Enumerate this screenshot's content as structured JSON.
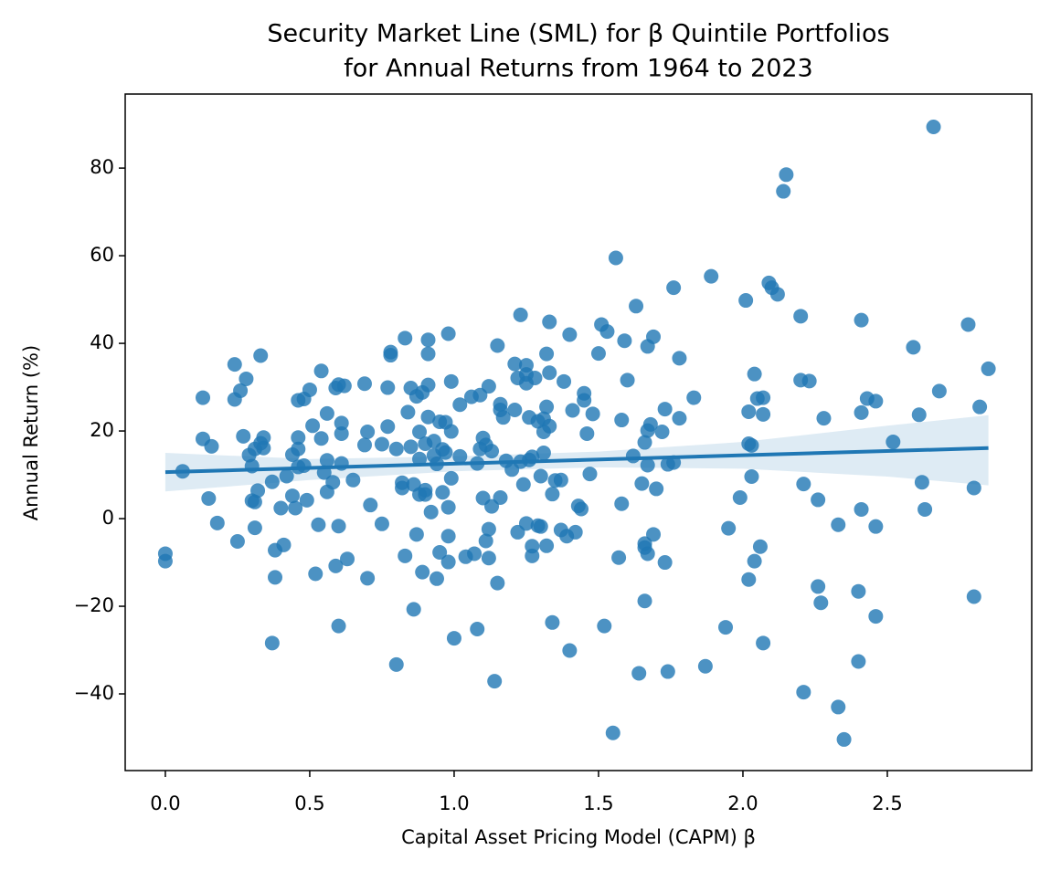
{
  "chart_data": {
    "type": "scatter",
    "title": [
      "Security Market Line (SML) for β Quintile Portfolios",
      "for Annual Returns from 1964 to 2023"
    ],
    "xlabel": "Capital Asset Pricing Model (CAPM) β",
    "ylabel": "Annual Return (%)",
    "color": "#1f77b4",
    "xlim": [
      -0.139,
      3.0
    ],
    "ylim": [
      -57.5,
      96.9
    ],
    "xticks": [
      {
        "value": 0,
        "label": "0.0"
      },
      0.5,
      {
        "value": 1,
        "label": "1.0"
      },
      1.5,
      {
        "value": 2,
        "label": "2.0"
      },
      2.5
    ],
    "yticks": [
      {
        "value": -40,
        "label": "−40"
      },
      {
        "value": -20,
        "label": "−20"
      },
      0,
      20,
      40,
      60,
      80
    ],
    "grid": false,
    "x": [
      0.0,
      0.0,
      0.06,
      0.13,
      0.13,
      0.15,
      0.16,
      0.18,
      0.24,
      0.24,
      0.25,
      0.26,
      0.27,
      0.28,
      0.29,
      0.3,
      0.3,
      0.31,
      0.31,
      0.31,
      0.32,
      0.33,
      0.33,
      0.34,
      0.34,
      0.37,
      0.37,
      0.38,
      0.38,
      0.4,
      0.41,
      0.42,
      0.44,
      0.44,
      0.45,
      0.46,
      0.46,
      0.46,
      0.46,
      0.48,
      0.48,
      0.49,
      0.5,
      0.51,
      0.52,
      0.53,
      0.54,
      0.54,
      0.55,
      0.56,
      0.56,
      0.56,
      0.58,
      0.59,
      0.59,
      0.6,
      0.6,
      0.6,
      0.61,
      0.61,
      0.61,
      0.62,
      0.63,
      0.65,
      0.69,
      0.69,
      0.7,
      0.7,
      0.71,
      0.75,
      0.75,
      0.77,
      0.77,
      0.78,
      0.78,
      0.8,
      0.8,
      0.82,
      0.82,
      0.83,
      0.83,
      0.84,
      0.85,
      0.85,
      0.86,
      0.86,
      0.87,
      0.87,
      0.88,
      0.88,
      0.88,
      0.89,
      0.89,
      0.9,
      0.9,
      0.9,
      0.91,
      0.91,
      0.91,
      0.91,
      0.92,
      0.93,
      0.93,
      0.94,
      0.94,
      0.95,
      0.95,
      0.96,
      0.96,
      0.97,
      0.97,
      0.98,
      0.98,
      0.98,
      0.98,
      0.99,
      0.99,
      0.99,
      1.0,
      1.02,
      1.02,
      1.04,
      1.06,
      1.07,
      1.08,
      1.08,
      1.09,
      1.09,
      1.1,
      1.1,
      1.11,
      1.11,
      1.12,
      1.12,
      1.12,
      1.13,
      1.13,
      1.14,
      1.15,
      1.15,
      1.16,
      1.16,
      1.16,
      1.17,
      1.18,
      1.2,
      1.21,
      1.21,
      1.22,
      1.22,
      1.23,
      1.23,
      1.24,
      1.25,
      1.25,
      1.25,
      1.25,
      1.26,
      1.26,
      1.27,
      1.27,
      1.27,
      1.28,
      1.29,
      1.29,
      1.3,
      1.3,
      1.31,
      1.31,
      1.31,
      1.32,
      1.32,
      1.32,
      1.33,
      1.33,
      1.33,
      1.34,
      1.34,
      1.35,
      1.37,
      1.37,
      1.38,
      1.39,
      1.4,
      1.4,
      1.41,
      1.42,
      1.43,
      1.44,
      1.45,
      1.45,
      1.46,
      1.47,
      1.48,
      1.5,
      1.51,
      1.52,
      1.53,
      1.55,
      1.56,
      1.57,
      1.58,
      1.58,
      1.59,
      1.6,
      1.62,
      1.63,
      1.64,
      1.65,
      1.66,
      1.66,
      1.66,
      1.66,
      1.67,
      1.67,
      1.67,
      1.67,
      1.68,
      1.69,
      1.69,
      1.7,
      1.72,
      1.73,
      1.73,
      1.74,
      1.74,
      1.76,
      1.76,
      1.78,
      1.78,
      1.83,
      1.87,
      1.89,
      1.94,
      1.95,
      1.99,
      2.01,
      2.02,
      2.02,
      2.02,
      2.03,
      2.03,
      2.04,
      2.04,
      2.05,
      2.06,
      2.07,
      2.07,
      2.07,
      2.09,
      2.1,
      2.12,
      2.14,
      2.15,
      2.2,
      2.2,
      2.21,
      2.21,
      2.23,
      2.26,
      2.26,
      2.27,
      2.28,
      2.33,
      2.33,
      2.35,
      2.4,
      2.4,
      2.41,
      2.41,
      2.41,
      2.43,
      2.46,
      2.46,
      2.46,
      2.52,
      2.59,
      2.61,
      2.62,
      2.63,
      2.66,
      2.68,
      2.78,
      2.8,
      2.8,
      2.82,
      2.85
    ],
    "y": [
      -8,
      -9.7,
      10.8,
      27.6,
      18.2,
      4.6,
      16.5,
      -1,
      35.2,
      27.2,
      -5.2,
      29.2,
      18.8,
      31.9,
      14.5,
      12,
      4.1,
      -2.1,
      15.9,
      3.8,
      6.4,
      37.2,
      17.2,
      16.1,
      18.5,
      8.4,
      -28.4,
      -13.4,
      -7.2,
      2.4,
      -6,
      9.7,
      14.6,
      5.2,
      2.4,
      27,
      18.5,
      15.9,
      11.8,
      27.3,
      12.1,
      4.2,
      29.4,
      21.2,
      -12.6,
      -1.4,
      33.7,
      18.3,
      10.5,
      24,
      13.3,
      6.1,
      8.3,
      29.8,
      -10.8,
      30.6,
      -1.7,
      -24.5,
      21.8,
      19.4,
      12.6,
      30.3,
      -9.2,
      8.8,
      30.8,
      16.8,
      -13.6,
      19.8,
      3.1,
      17,
      -1.2,
      29.9,
      21,
      38,
      37.3,
      -33.3,
      15.9,
      7,
      8.2,
      41.2,
      -8.5,
      24.3,
      29.8,
      16.4,
      7.8,
      -20.7,
      -3.6,
      27.9,
      19.8,
      13.6,
      5.5,
      28.8,
      -12.2,
      6.5,
      5.5,
      17.1,
      40.8,
      37.6,
      30.5,
      23.2,
      1.5,
      17.7,
      14.4,
      -13.7,
      12.5,
      22.1,
      -7.7,
      15.8,
      6,
      22,
      15.1,
      42.2,
      -9.9,
      -4,
      2.6,
      31.3,
      19.9,
      9.2,
      -27.3,
      26,
      14.2,
      -8.7,
      27.8,
      -8,
      -25.2,
      12.6,
      28.2,
      15.9,
      4.7,
      18.4,
      -5.1,
      16.8,
      30.2,
      -9,
      -2.4,
      2.8,
      15.4,
      -37.1,
      -14.7,
      39.5,
      26.1,
      24.8,
      4.8,
      23.1,
      13.2,
      11.2,
      35.3,
      24.8,
      32.1,
      -3.1,
      46.5,
      13,
      7.8,
      -1.1,
      35,
      32.9,
      30.9,
      13.4,
      23.1,
      14.1,
      -8.5,
      -6.3,
      32.1,
      22.2,
      -1.6,
      -1.8,
      9.7,
      19.8,
      22.8,
      15,
      37.6,
      25.5,
      -6.2,
      44.9,
      33.3,
      21.1,
      -23.7,
      5.6,
      8.7,
      8.8,
      -2.6,
      31.3,
      -4,
      42,
      -30.1,
      24.7,
      -3.1,
      2.9,
      2.2,
      27,
      28.6,
      19.4,
      10.2,
      23.9,
      37.7,
      44.3,
      -24.5,
      42.7,
      -48.9,
      59.5,
      -8.9,
      22.5,
      3.4,
      40.6,
      31.6,
      14.3,
      48.5,
      -35.3,
      8,
      -5.7,
      -6.6,
      -18.8,
      17.4,
      39.3,
      20.1,
      12.2,
      -8,
      21.5,
      41.5,
      -3.6,
      6.8,
      19.8,
      25,
      -10,
      12.4,
      -34.9,
      52.7,
      12.8,
      36.6,
      22.9,
      27.6,
      -33.7,
      55.3,
      -24.8,
      -2.2,
      4.8,
      49.8,
      24.4,
      17.1,
      -13.9,
      16.7,
      9.6,
      33,
      -9.7,
      27.4,
      -6.4,
      27.6,
      23.8,
      -28.4,
      53.8,
      52.7,
      51.2,
      74.7,
      78.5,
      46.2,
      31.6,
      7.9,
      -39.6,
      31.4,
      4.3,
      -15.5,
      -19.2,
      22.9,
      -1.4,
      -43,
      -50.4,
      -16.6,
      -32.6,
      45.3,
      24.2,
      2.1,
      27.4,
      26.8,
      -1.8,
      -22.3,
      17.5,
      39.1,
      23.7,
      8.3,
      2.1,
      89.4,
      29.1,
      44.3,
      7,
      -17.8,
      25.5,
      34.2
    ],
    "regression": {
      "x": [
        0,
        2.85
      ],
      "y": [
        10.6,
        16.1
      ]
    },
    "ci": {
      "x": [
        0,
        0.5,
        1.0,
        1.5,
        2.0,
        2.5,
        2.85
      ],
      "lower": [
        6.2,
        8.8,
        10.8,
        11.7,
        11.4,
        9.6,
        7.6
      ],
      "upper": [
        15.0,
        13.6,
        14.2,
        15.3,
        17.5,
        21.2,
        23.6
      ]
    }
  }
}
